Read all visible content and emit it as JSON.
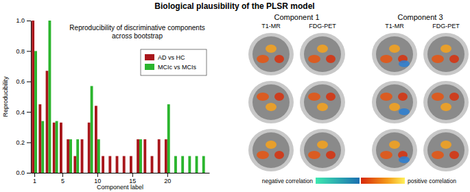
{
  "figure": {
    "title": "Biological plausibility of the PLSR model",
    "panels": [
      {
        "title": "Component 1",
        "columns": [
          "T1-MR",
          "FDG-PET"
        ]
      },
      {
        "title": "Component 3",
        "columns": [
          "T1-MR",
          "FDG-PET"
        ]
      }
    ],
    "colorbar": {
      "negative_label": "negative correlation",
      "positive_label": "positive correlation"
    }
  },
  "chart_data": {
    "type": "bar",
    "title": "Reproducibility of discriminative components across bootstrap",
    "x_label": "Component label",
    "y_label": "Reproducibility",
    "x": [
      1,
      2,
      3,
      4,
      5,
      6,
      7,
      8,
      9,
      10,
      11,
      12,
      13,
      14,
      15,
      16,
      17,
      18,
      19,
      20,
      21,
      22,
      23,
      24,
      25
    ],
    "series": [
      {
        "name": "AD vs HC",
        "color": "#a8161b",
        "values": [
          1.0,
          0.45,
          0.67,
          0.33,
          0.33,
          0.22,
          0.11,
          0.22,
          0.33,
          0.44,
          0.11,
          0.11,
          0.11,
          0.11,
          0.11,
          0.22,
          0.22,
          0.11,
          0.22,
          0.22,
          0,
          0,
          0,
          0,
          0
        ]
      },
      {
        "name": "MCIc vs MCIs",
        "color": "#2bb52e",
        "values": [
          0.8,
          0.34,
          1.0,
          0.34,
          0,
          0.22,
          0.22,
          0,
          0.57,
          0.22,
          0,
          0,
          0,
          0,
          0,
          0.22,
          0,
          0,
          0,
          0.45,
          0.11,
          0.11,
          0.11,
          0.11,
          0.11
        ]
      }
    ],
    "xlim": [
      0.5,
      26
    ],
    "xticks": [
      1,
      5,
      10,
      15,
      20
    ],
    "ylim": [
      0,
      1
    ],
    "yticks": [
      {
        "value": 0,
        "label": "0.0"
      },
      {
        "value": 0.2,
        "label": "0.2"
      },
      {
        "value": 0.4,
        "label": "0.4"
      },
      {
        "value": 0.6,
        "label": "0.6"
      },
      {
        "value": 0.8,
        "label": "0.8"
      },
      {
        "value": 1.0,
        "label": "1.0"
      }
    ],
    "legend": "upper-right",
    "grid": false
  }
}
